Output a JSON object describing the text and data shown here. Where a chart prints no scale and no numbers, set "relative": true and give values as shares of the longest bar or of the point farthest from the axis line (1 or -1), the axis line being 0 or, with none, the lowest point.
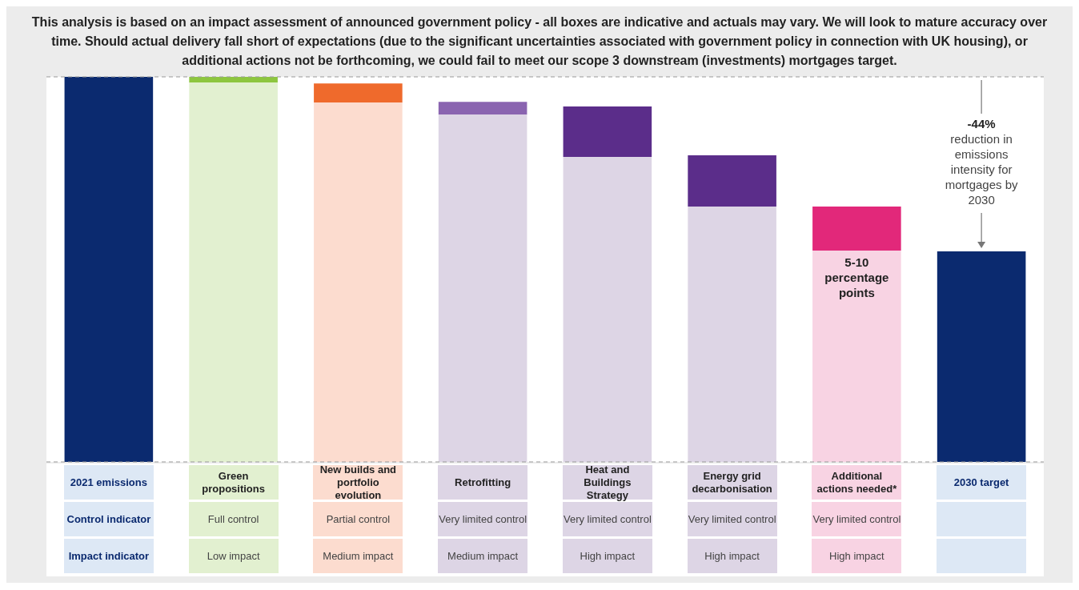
{
  "chart_data": {
    "type": "bar",
    "title": "This analysis is based on an impact assessment of announced government policy - all boxes are indicative and actuals may vary. We will look to mature accuracy over time. Should actual delivery fall short of expectations (due to the significant uncertainties associated with government policy in connection with UK housing), or additional actions not be forthcoming, we could fail to meet our scope 3 downstream (investments) mortgages target.",
    "categories": [
      "2021 emissions",
      "Green propositions",
      "New builds and portfolio evolution",
      "Retrofitting",
      "Heat and Buildings Strategy",
      "Energy grid decarbonisation",
      "Additional actions needed*",
      "2030 target"
    ],
    "stacked": true,
    "relative": true,
    "series": [
      {
        "values": [
          null,
          0.985,
          0.933,
          0.902,
          0.792,
          0.663,
          0.549,
          null
        ],
        "colors": [
          "#dde8f5",
          "#e2f0d0",
          "#fcdccf",
          "#ddd5e5",
          "#ddd5e5",
          "#ddd5e5",
          "#f8d3e3",
          "#dde8f5"
        ]
      },
      {
        "values": [
          1,
          0.015,
          0.05,
          0.033,
          0.131,
          0.133,
          0.114,
          0.547
        ],
        "colors": [
          "#0b2a6f",
          "#8dc63f",
          "#ef6a2c",
          "#8a64b0",
          "#5b2d8a",
          "#5b2d8a",
          "#e2287a",
          "#0b2a6f"
        ]
      }
    ],
    "ref_lines": [
      {
        "axis": "y",
        "value": 1,
        "color": "#999999",
        "line_style": "dashed"
      },
      {
        "axis": "y",
        "value": 0,
        "color": "#999999",
        "line_style": "dashed"
      }
    ],
    "annotations": [
      "-44% reduction in emissions intensity for mortgages by 2030",
      {
        "text": "5-10 percentage points",
        "x": "Additional actions needed*",
        "y": 0.549
      },
      "Control indicator",
      "Full control",
      "Partial control",
      "Very limited control",
      "Very limited control",
      "Very limited control",
      "Very limited control",
      "Impact indicator",
      "Low impact",
      "Medium impact",
      "Medium impact",
      "High impact",
      "High impact",
      "High impact"
    ]
  }
}
